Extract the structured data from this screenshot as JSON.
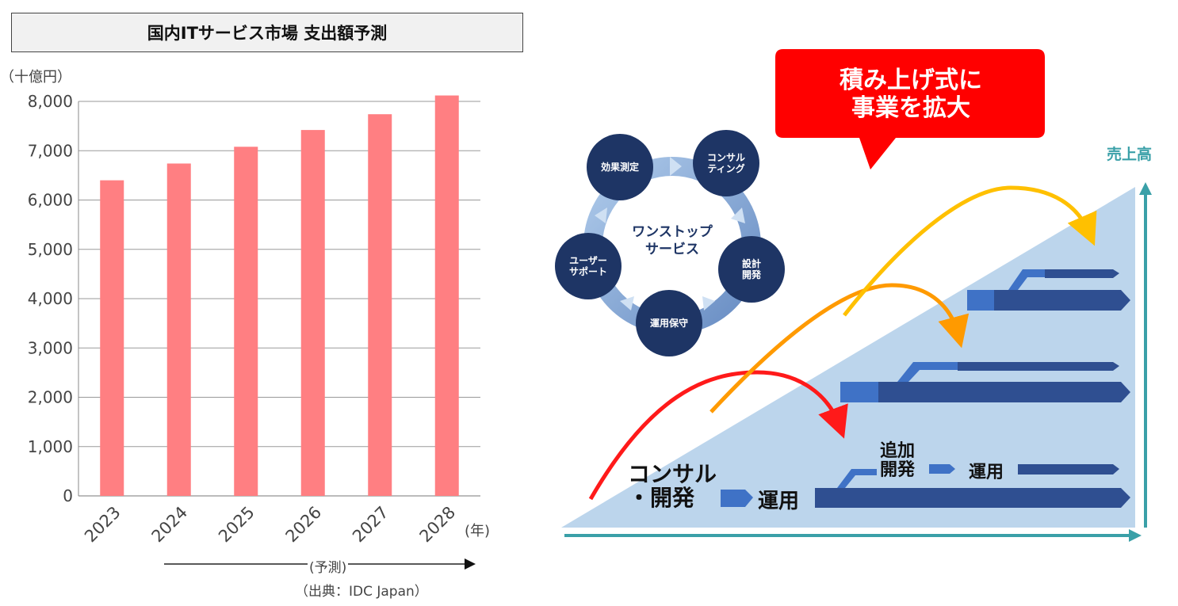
{
  "chart_data": {
    "type": "bar",
    "title": "国内ITサービス市場 支出額予測",
    "ylabel": "（十億円）",
    "xlabel": "(年)",
    "categories": [
      "2023",
      "2024",
      "2025",
      "2026",
      "2027",
      "2028"
    ],
    "values": [
      6400,
      6740,
      7080,
      7420,
      7740,
      8120
    ],
    "ylim": [
      0,
      8000
    ],
    "yticks": [
      "0",
      "1,000",
      "2,000",
      "3,000",
      "4,000",
      "5,000",
      "6,000",
      "7,000",
      "8,000"
    ],
    "grid": true,
    "bar_color": "#ff7f82",
    "annotation_forecast": "(予測)",
    "source": "（出典：IDC Japan）"
  },
  "diagram": {
    "callout": "積み上げ式に\n事業を拡大",
    "axis_label": "売上高",
    "center_label": "ワンストップ\nサービス",
    "cycle_items": [
      "効果測定",
      "コンサル\nティング",
      "設計\n開発",
      "運用保守",
      "ユーザー\nサポート"
    ],
    "stage_consult": "コンサル\n・開発",
    "stage_ops": "運用",
    "stage_additional": "追加\n開発",
    "stage_ops2": "運用",
    "colors": {
      "callout": "#ff0000",
      "circle": "#1e3565",
      "triangle": "#bcd5ec",
      "axis": "#3aa0a8",
      "bar_dark": "#2f4f91",
      "bar_light": "#3f72c6",
      "arrow_red": "#ff1a1a",
      "arrow_orange": "#ff9a00",
      "arrow_yellow": "#ffc000"
    }
  }
}
